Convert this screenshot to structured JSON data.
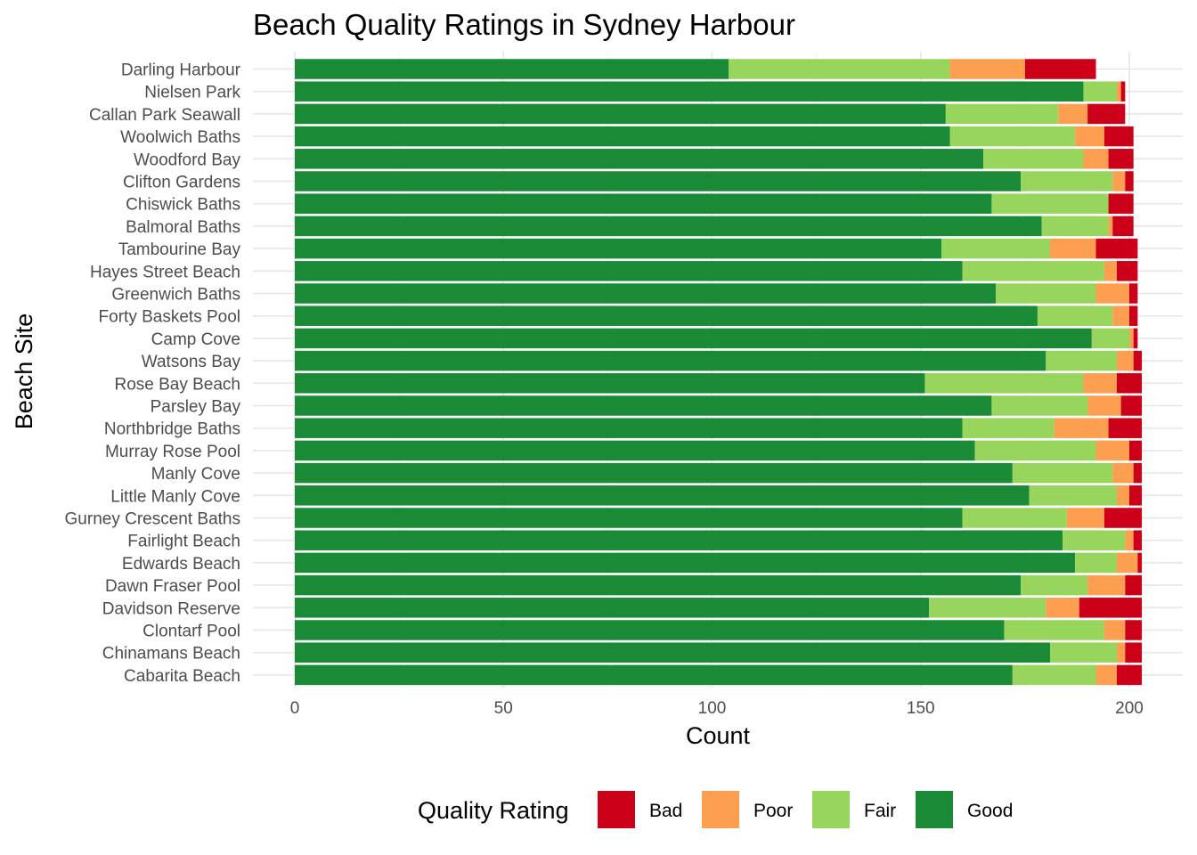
{
  "chart_data": {
    "type": "bar",
    "orientation": "horizontal",
    "stacked": true,
    "title": "Beach Quality Ratings in Sydney Harbour",
    "xlabel": "Count",
    "ylabel": "Beach Site",
    "xlim": [
      0,
      203
    ],
    "x_ticks": [
      0,
      50,
      100,
      150,
      200
    ],
    "grid": true,
    "categories": [
      "Darling Harbour",
      "Nielsen Park",
      "Callan Park Seawall",
      "Woolwich Baths",
      "Woodford Bay",
      "Clifton Gardens",
      "Chiswick Baths",
      "Balmoral Baths",
      "Tambourine Bay",
      "Hayes Street Beach",
      "Greenwich Baths",
      "Forty Baskets Pool",
      "Camp Cove",
      "Watsons Bay",
      "Rose Bay Beach",
      "Parsley Bay",
      "Northbridge Baths",
      "Murray Rose Pool",
      "Manly Cove",
      "Little Manly Cove",
      "Gurney Crescent Baths",
      "Fairlight Beach",
      "Edwards Beach",
      "Dawn Fraser Pool",
      "Davidson Reserve",
      "Clontarf Pool",
      "Chinamans Beach",
      "Cabarita Beach"
    ],
    "series": [
      {
        "name": "Good",
        "color": "#1a8a36",
        "values": [
          104,
          189,
          156,
          157,
          165,
          174,
          167,
          179,
          155,
          160,
          168,
          178,
          191,
          180,
          151,
          167,
          160,
          163,
          172,
          176,
          160,
          184,
          187,
          174,
          152,
          170,
          181,
          172
        ]
      },
      {
        "name": "Fair",
        "color": "#98d55c",
        "values": [
          53,
          8,
          27,
          30,
          24,
          22,
          28,
          16,
          26,
          34,
          24,
          18,
          9,
          17,
          38,
          23,
          22,
          29,
          24,
          21,
          25,
          15,
          10,
          16,
          28,
          24,
          16,
          20
        ]
      },
      {
        "name": "Poor",
        "color": "#fc9f51",
        "values": [
          18,
          1,
          7,
          7,
          6,
          3,
          0,
          1,
          11,
          3,
          8,
          4,
          1,
          4,
          8,
          8,
          13,
          8,
          5,
          3,
          9,
          2,
          5,
          9,
          8,
          5,
          2,
          5
        ]
      },
      {
        "name": "Bad",
        "color": "#cc0019",
        "values": [
          17,
          1,
          9,
          7,
          6,
          2,
          6,
          5,
          10,
          5,
          2,
          2,
          1,
          2,
          6,
          5,
          8,
          3,
          2,
          3,
          9,
          2,
          1,
          4,
          15,
          4,
          4,
          6
        ]
      }
    ],
    "legend": {
      "title": "Quality Rating",
      "placement": "bottom",
      "order": [
        "Bad",
        "Poor",
        "Fair",
        "Good"
      ]
    }
  }
}
